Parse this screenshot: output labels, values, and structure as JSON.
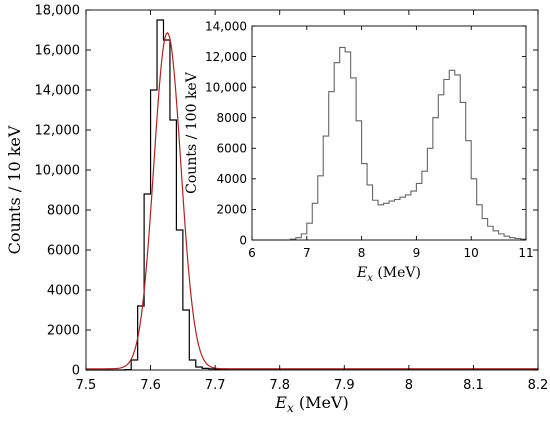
{
  "chart_data": [
    {
      "id": "main",
      "type": "histogram",
      "xlabel": {
        "var": "E",
        "sub": "x",
        "unit": " (MeV)"
      },
      "ylabel": "Counts / 10 keV",
      "xlim": [
        7.5,
        8.2
      ],
      "ylim": [
        0,
        18000
      ],
      "xticks": [
        7.5,
        7.6,
        7.7,
        7.8,
        7.9,
        8,
        8.1,
        8.2
      ],
      "xtick_labels": [
        "7.5",
        "7.6",
        "7.7",
        "7.8",
        "7.9",
        "8",
        "8.1",
        "8.2"
      ],
      "yticks": [
        0,
        2000,
        4000,
        6000,
        8000,
        10000,
        12000,
        14000,
        16000,
        18000
      ],
      "ytick_labels": [
        "0",
        "2000",
        "4000",
        "6000",
        "8000",
        "10,000",
        "12,000",
        "14,000",
        "16,000",
        "18,000"
      ],
      "grid": false,
      "bin_width": 0.01,
      "series": [
        {
          "kind": "histogram",
          "color": "#000000",
          "bin_edges": [
            7.5,
            7.51,
            7.52,
            7.53,
            7.54,
            7.55,
            7.56,
            7.57,
            7.58,
            7.59,
            7.6,
            7.61,
            7.62,
            7.63,
            7.64,
            7.65,
            7.66,
            7.67,
            7.68,
            7.69,
            7.7,
            7.71,
            7.72,
            7.73,
            7.74,
            7.75,
            7.76,
            7.77,
            7.78,
            7.79,
            7.8,
            7.81,
            7.82,
            7.83,
            7.84,
            7.85,
            7.86,
            7.87,
            7.88,
            7.89,
            7.9,
            7.91,
            7.92,
            7.93,
            7.94,
            7.95,
            7.96,
            7.97,
            7.98,
            7.99,
            8.0,
            8.01,
            8.02,
            8.03,
            8.04,
            8.05,
            8.06,
            8.07,
            8.08,
            8.09,
            8.1,
            8.11,
            8.12,
            8.13,
            8.14,
            8.15,
            8.16,
            8.17,
            8.18,
            8.19,
            8.2
          ],
          "counts": [
            0,
            0,
            0,
            0,
            0,
            0,
            20,
            500,
            3200,
            8800,
            14000,
            17500,
            16500,
            12500,
            7000,
            3000,
            500,
            150,
            80,
            60,
            50,
            50,
            50,
            50,
            50,
            50,
            50,
            50,
            50,
            50,
            50,
            50,
            50,
            50,
            50,
            50,
            50,
            50,
            50,
            50,
            50,
            50,
            50,
            50,
            50,
            50,
            50,
            50,
            50,
            50,
            50,
            50,
            50,
            50,
            50,
            50,
            50,
            50,
            50,
            50,
            50,
            50,
            50,
            50,
            50,
            50,
            50,
            50,
            50,
            50
          ]
        },
        {
          "kind": "fit-line",
          "color": "#b22222",
          "shape": "gaussian",
          "center": 7.626,
          "sigma": 0.021,
          "amplitude": 16800,
          "background": 60
        }
      ]
    },
    {
      "id": "inset",
      "type": "histogram",
      "xlabel": {
        "var": "E",
        "sub": "x",
        "unit": " (MeV)"
      },
      "ylabel": "Counts / 100 keV",
      "xlim": [
        6,
        11
      ],
      "ylim": [
        0,
        14000
      ],
      "xticks": [
        6,
        7,
        8,
        9,
        10,
        11
      ],
      "xtick_labels": [
        "6",
        "7",
        "8",
        "9",
        "10",
        "11"
      ],
      "yticks": [
        0,
        2000,
        4000,
        6000,
        8000,
        10000,
        12000,
        14000
      ],
      "ytick_labels": [
        "0",
        "2000",
        "4000",
        "6000",
        "8000",
        "10,000",
        "12,000",
        "14,000"
      ],
      "grid": false,
      "bin_width": 0.1,
      "series": [
        {
          "kind": "histogram",
          "color": "#666666",
          "bin_edges": [
            6.0,
            6.1,
            6.2,
            6.3,
            6.4,
            6.5,
            6.6,
            6.7,
            6.8,
            6.9,
            7.0,
            7.1,
            7.2,
            7.3,
            7.4,
            7.5,
            7.6,
            7.7,
            7.8,
            7.9,
            8.0,
            8.1,
            8.2,
            8.3,
            8.4,
            8.5,
            8.6,
            8.7,
            8.8,
            8.9,
            9.0,
            9.1,
            9.2,
            9.3,
            9.4,
            9.5,
            9.6,
            9.7,
            9.8,
            9.9,
            10.0,
            10.1,
            10.2,
            10.3,
            10.4,
            10.5,
            10.6,
            10.7,
            10.8,
            10.9,
            11.0
          ],
          "counts": [
            0,
            0,
            0,
            0,
            0,
            0,
            0,
            50,
            150,
            400,
            1100,
            2400,
            4200,
            6800,
            9700,
            11600,
            12600,
            12300,
            10600,
            7800,
            5000,
            3600,
            2600,
            2300,
            2400,
            2550,
            2650,
            2800,
            2950,
            3200,
            3700,
            4500,
            6000,
            8000,
            9500,
            10500,
            11100,
            10800,
            9000,
            6500,
            4000,
            2300,
            1400,
            900,
            600,
            400,
            250,
            150,
            100,
            50
          ]
        }
      ]
    }
  ]
}
